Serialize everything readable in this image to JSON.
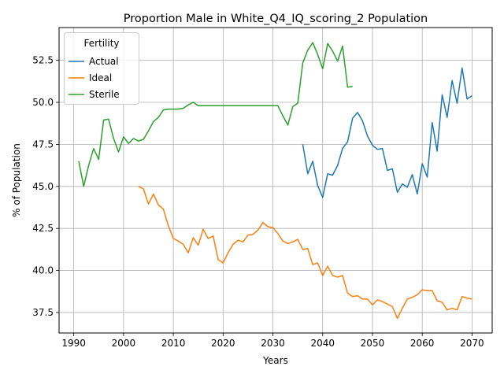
{
  "chart_data": {
    "type": "line",
    "title": "Proportion Male in White_Q4_IQ_scoring_2 Population",
    "xlabel": "Years",
    "ylabel": "% of Population",
    "xlim": [
      1987.05,
      2074.05
    ],
    "ylim": [
      36.28,
      54.45
    ],
    "x_ticks": [
      1990,
      2000,
      2010,
      2020,
      2030,
      2040,
      2050,
      2060,
      2070
    ],
    "y_ticks": [
      37.5,
      40.0,
      42.5,
      45.0,
      47.5,
      50.0,
      52.5
    ],
    "grid": true,
    "legend": {
      "title": "Fertility",
      "placement": "top-left"
    },
    "series": [
      {
        "name": "Actual",
        "color": "#1f77b4",
        "x": [
          2036,
          2037,
          2038,
          2039,
          2040,
          2041,
          2042,
          2043,
          2044,
          2045,
          2046,
          2047,
          2048,
          2049,
          2050,
          2051,
          2052,
          2053,
          2054,
          2055,
          2056,
          2057,
          2058,
          2059,
          2060,
          2061,
          2062,
          2063,
          2064,
          2065,
          2066,
          2067,
          2068,
          2069,
          2070
        ],
        "y": [
          47.5,
          45.75,
          46.5,
          45.05,
          44.35,
          45.75,
          45.67,
          46.25,
          47.25,
          47.65,
          49.05,
          49.4,
          48.9,
          48.0,
          47.45,
          47.2,
          47.25,
          45.95,
          46.05,
          44.65,
          45.15,
          44.95,
          45.7,
          44.55,
          46.35,
          45.55,
          48.8,
          47.1,
          50.45,
          49.1,
          51.3,
          49.95,
          52.05,
          50.2,
          50.4
        ]
      },
      {
        "name": "Ideal",
        "color": "#ff7f0e",
        "x": [
          2003,
          2004,
          2005,
          2006,
          2007,
          2008,
          2009,
          2010,
          2011,
          2012,
          2013,
          2014,
          2015,
          2016,
          2017,
          2018,
          2019,
          2020,
          2021,
          2022,
          2023,
          2024,
          2025,
          2026,
          2027,
          2028,
          2029,
          2030,
          2031,
          2032,
          2033,
          2034,
          2035,
          2036,
          2037,
          2038,
          2039,
          2040,
          2041,
          2042,
          2043,
          2044,
          2045,
          2046,
          2047,
          2048,
          2049,
          2050,
          2051,
          2052,
          2053,
          2054,
          2055,
          2056,
          2057,
          2058,
          2059,
          2060,
          2061,
          2062,
          2063,
          2064,
          2065,
          2066,
          2067,
          2068,
          2069,
          2070
        ],
        "y": [
          45.0,
          44.85,
          43.95,
          44.55,
          43.9,
          43.65,
          42.65,
          41.9,
          41.75,
          41.55,
          41.05,
          41.95,
          41.5,
          42.45,
          41.9,
          42.05,
          40.65,
          40.45,
          41.05,
          41.55,
          41.8,
          41.7,
          42.1,
          42.15,
          42.4,
          42.85,
          42.6,
          42.55,
          42.2,
          41.75,
          41.6,
          41.7,
          41.85,
          41.25,
          41.3,
          40.35,
          40.45,
          39.7,
          40.25,
          39.7,
          39.6,
          39.7,
          38.65,
          38.45,
          38.5,
          38.3,
          38.3,
          37.95,
          38.25,
          38.15,
          38.0,
          37.85,
          37.15,
          37.75,
          38.3,
          38.4,
          38.55,
          38.85,
          38.8,
          38.8,
          38.2,
          38.1,
          37.65,
          37.75,
          37.65,
          38.45,
          38.35,
          38.3
        ]
      },
      {
        "name": "Sterile",
        "color": "#2ca02c",
        "x": [
          1991,
          1992,
          1993,
          1994,
          1995,
          1996,
          1997,
          1998,
          1999,
          2000,
          2001,
          2002,
          2003,
          2004,
          2005,
          2006,
          2007,
          2008,
          2009,
          2010,
          2011,
          2012,
          2013,
          2014,
          2015,
          2016,
          2017,
          2018,
          2019,
          2020,
          2021,
          2022,
          2023,
          2024,
          2025,
          2026,
          2027,
          2028,
          2029,
          2030,
          2031,
          2032,
          2033,
          2034,
          2035,
          2036,
          2037,
          2038,
          2039,
          2040,
          2041,
          2042,
          2043,
          2044,
          2045,
          2046
        ],
        "y": [
          46.5,
          45.0,
          46.25,
          47.25,
          46.6,
          48.95,
          49.0,
          47.85,
          47.05,
          47.95,
          47.55,
          47.85,
          47.7,
          47.8,
          48.3,
          48.85,
          49.1,
          49.55,
          49.6,
          49.6,
          49.6,
          49.65,
          49.85,
          50.0,
          49.8,
          49.8,
          49.8,
          49.8,
          49.8,
          49.8,
          49.8,
          49.8,
          49.8,
          49.8,
          49.8,
          49.8,
          49.8,
          49.8,
          49.8,
          49.8,
          49.8,
          49.2,
          48.65,
          49.75,
          49.95,
          52.35,
          53.1,
          53.55,
          52.85,
          52.0,
          53.5,
          53.05,
          52.45,
          53.35,
          50.9,
          50.95
        ]
      }
    ]
  }
}
